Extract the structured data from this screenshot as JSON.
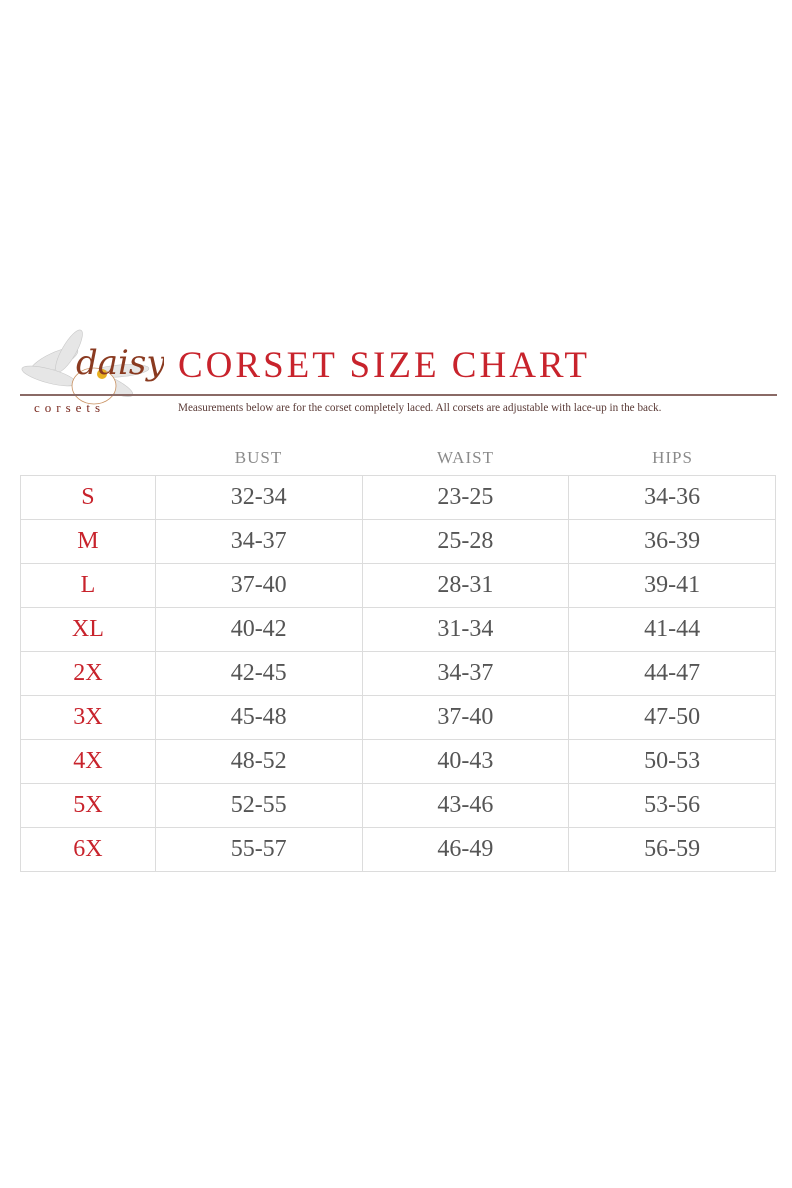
{
  "brand": {
    "logo_script": "daisy",
    "logo_word": "corsets"
  },
  "title": "CORSET SIZE CHART",
  "note": "Measurements below are for the corset completely laced.  All corsets are adjustable with lace-up in the back.",
  "colors": {
    "accent": "#c8232c",
    "text": "#555555"
  },
  "headers": [
    "BUST",
    "WAIST",
    "HIPS"
  ],
  "rows": [
    {
      "size": "S",
      "bust": "32-34",
      "waist": "23-25",
      "hips": "34-36"
    },
    {
      "size": "M",
      "bust": "34-37",
      "waist": "25-28",
      "hips": "36-39"
    },
    {
      "size": "L",
      "bust": "37-40",
      "waist": "28-31",
      "hips": "39-41"
    },
    {
      "size": "XL",
      "bust": "40-42",
      "waist": "31-34",
      "hips": "41-44"
    },
    {
      "size": "2X",
      "bust": "42-45",
      "waist": "34-37",
      "hips": "44-47"
    },
    {
      "size": "3X",
      "bust": "45-48",
      "waist": "37-40",
      "hips": "47-50"
    },
    {
      "size": "4X",
      "bust": "48-52",
      "waist": "40-43",
      "hips": "50-53"
    },
    {
      "size": "5X",
      "bust": "52-55",
      "waist": "43-46",
      "hips": "53-56"
    },
    {
      "size": "6X",
      "bust": "55-57",
      "waist": "46-49",
      "hips": "56-59"
    }
  ]
}
